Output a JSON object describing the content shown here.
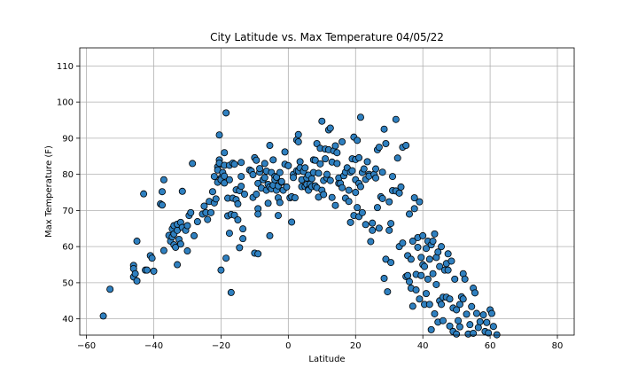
{
  "chart_data": {
    "type": "scatter",
    "title": "City Latitude vs. Max Temperature 04/05/22",
    "xlabel": "Latitude",
    "ylabel": "Max Temperature (F)",
    "xlim": [
      -62,
      85
    ],
    "ylim": [
      35.5,
      115
    ],
    "xticks": [
      -60,
      -40,
      -20,
      0,
      20,
      40,
      60,
      80
    ],
    "yticks": [
      40,
      50,
      60,
      70,
      80,
      90,
      100,
      110
    ],
    "grid": true,
    "point_color": "#2f80c0",
    "points": [
      [
        -55,
        40.8
      ],
      [
        -53,
        48.2
      ],
      [
        -46,
        54.8
      ],
      [
        -46,
        53.9
      ],
      [
        -46,
        51.6
      ],
      [
        -45.5,
        52.5
      ],
      [
        -45,
        50.5
      ],
      [
        -45,
        61.5
      ],
      [
        -43,
        74.6
      ],
      [
        -42.5,
        53.5
      ],
      [
        -42,
        53.5
      ],
      [
        -41,
        57.5
      ],
      [
        -40.5,
        56.8
      ],
      [
        -40,
        53.2
      ],
      [
        -38,
        71.8
      ],
      [
        -37.5,
        71.5
      ],
      [
        -37.5,
        75.2
      ],
      [
        -37,
        78.5
      ],
      [
        -37,
        58.9
      ],
      [
        -35.5,
        63.1
      ],
      [
        -35,
        61.5
      ],
      [
        -34.5,
        62.7
      ],
      [
        -34.5,
        64.9
      ],
      [
        -34,
        60.5
      ],
      [
        -34,
        65.8
      ],
      [
        -34,
        63.5
      ],
      [
        -33.5,
        59.8
      ],
      [
        -33,
        64.5
      ],
      [
        -33,
        66.2
      ],
      [
        -33,
        55
      ],
      [
        -32.5,
        62
      ],
      [
        -32,
        66.7
      ],
      [
        -32,
        60.7
      ],
      [
        -31.5,
        65.3
      ],
      [
        -31.5,
        75.3
      ],
      [
        -30.5,
        64.5
      ],
      [
        -30,
        65.8
      ],
      [
        -30,
        58.8
      ],
      [
        -29.5,
        68.6
      ],
      [
        -29,
        69.4
      ],
      [
        -28.5,
        83
      ],
      [
        -28,
        63
      ],
      [
        -27,
        66.9
      ],
      [
        -25.5,
        69
      ],
      [
        -25,
        71.2
      ],
      [
        -24.5,
        69.4
      ],
      [
        -24,
        67.5
      ],
      [
        -23.5,
        72.5
      ],
      [
        -23,
        69.4
      ],
      [
        -22.5,
        75.2
      ],
      [
        -22,
        79.4
      ],
      [
        -22,
        72.1
      ],
      [
        -21.5,
        73.2
      ],
      [
        -21,
        77.8
      ],
      [
        -21,
        82.1
      ],
      [
        -21,
        81.2
      ],
      [
        -20.5,
        84
      ],
      [
        -20.5,
        90.9
      ],
      [
        -20.5,
        83.1
      ],
      [
        -20,
        79
      ],
      [
        -20,
        78.5
      ],
      [
        -20,
        53.5
      ],
      [
        -19.5,
        80.5
      ],
      [
        -19,
        82.5
      ],
      [
        -19,
        86
      ],
      [
        -19,
        77.6
      ],
      [
        -19,
        79.5
      ],
      [
        -18.5,
        97
      ],
      [
        -18.5,
        56.8
      ],
      [
        -18,
        68.5
      ],
      [
        -18,
        73.4
      ],
      [
        -17.5,
        63.7
      ],
      [
        -17.5,
        78.5
      ],
      [
        -17.5,
        82.5
      ],
      [
        -17,
        47.3
      ],
      [
        -17,
        68.9
      ],
      [
        -16.5,
        83.1
      ],
      [
        -16.5,
        73.4
      ],
      [
        -16,
        82.8
      ],
      [
        -16,
        68.7
      ],
      [
        -15.5,
        75.7
      ],
      [
        -15.5,
        73
      ],
      [
        -15,
        71.8
      ],
      [
        -15,
        67.4
      ],
      [
        -14.5,
        59.7
      ],
      [
        -14.5,
        75.5
      ],
      [
        -14,
        83.3
      ],
      [
        -14,
        76.7
      ],
      [
        -14,
        79.4
      ],
      [
        -13.5,
        62.2
      ],
      [
        -13.5,
        64.9
      ],
      [
        -13,
        74.5
      ],
      [
        -11.5,
        81.2
      ],
      [
        -11,
        80.9
      ],
      [
        -10.5,
        79.9
      ],
      [
        -10.5,
        73.6
      ],
      [
        -10,
        84.6
      ],
      [
        -10,
        58.2
      ],
      [
        -9.5,
        83.9
      ],
      [
        -9.5,
        74.5
      ],
      [
        -9,
        77.5
      ],
      [
        -9,
        70.5
      ],
      [
        -9,
        69
      ],
      [
        -9,
        58
      ],
      [
        -8.5,
        80.6
      ],
      [
        -8.5,
        81.6
      ],
      [
        -8,
        76.2
      ],
      [
        -7.5,
        78.5
      ],
      [
        -7,
        79.1
      ],
      [
        -7,
        83
      ],
      [
        -6.5,
        80.9
      ],
      [
        -6.5,
        75.6
      ],
      [
        -6,
        72
      ],
      [
        -6,
        77.2
      ],
      [
        -5.5,
        88
      ],
      [
        -5.5,
        76.5
      ],
      [
        -5.5,
        63
      ],
      [
        -5,
        80.5
      ],
      [
        -5,
        76
      ],
      [
        -4.5,
        84
      ],
      [
        -4.5,
        77
      ],
      [
        -4,
        79.4
      ],
      [
        -4,
        78.5
      ],
      [
        -3.5,
        75.6
      ],
      [
        -3.5,
        79.2
      ],
      [
        -3,
        73.5
      ],
      [
        -3,
        76.8
      ],
      [
        -3,
        68.6
      ],
      [
        -2.5,
        72.2
      ],
      [
        -2.5,
        80.5
      ],
      [
        -2,
        77.8
      ],
      [
        -2,
        78
      ],
      [
        -1.5,
        75.6
      ],
      [
        -1,
        86.2
      ],
      [
        -1,
        82.8
      ],
      [
        -0.5,
        76.5
      ],
      [
        0,
        82.4
      ],
      [
        0.5,
        73.5
      ],
      [
        1,
        73.8
      ],
      [
        1,
        66.8
      ],
      [
        1.5,
        80
      ],
      [
        1.5,
        79.1
      ],
      [
        2,
        73.5
      ],
      [
        2.5,
        89.5
      ],
      [
        2.5,
        81
      ],
      [
        3,
        80.9
      ],
      [
        3,
        91
      ],
      [
        3,
        89
      ],
      [
        3.5,
        83.5
      ],
      [
        3.5,
        81.8
      ],
      [
        4,
        76.6
      ],
      [
        4,
        78.5
      ],
      [
        4.5,
        80.8
      ],
      [
        5,
        76.6
      ],
      [
        5,
        81.8
      ],
      [
        5.5,
        79
      ],
      [
        5.5,
        77.2
      ],
      [
        6,
        75.9
      ],
      [
        6,
        79.8
      ],
      [
        6,
        75.6
      ],
      [
        6.5,
        77.3
      ],
      [
        7,
        76.6
      ],
      [
        7,
        78.8
      ],
      [
        7.5,
        80.5
      ],
      [
        7.5,
        84
      ],
      [
        8,
        83.9
      ],
      [
        8,
        76.8
      ],
      [
        8.5,
        76.3
      ],
      [
        8.5,
        88.5
      ],
      [
        9,
        73.7
      ],
      [
        9,
        80.3
      ],
      [
        9.5,
        87.2
      ],
      [
        9.5,
        82.9
      ],
      [
        10,
        94.7
      ],
      [
        10,
        75.6
      ],
      [
        10.5,
        74.4
      ],
      [
        10.5,
        78.3
      ],
      [
        11,
        84.3
      ],
      [
        11,
        87
      ],
      [
        11.5,
        79
      ],
      [
        11.5,
        80
      ],
      [
        12,
        92.3
      ],
      [
        12,
        86.8
      ],
      [
        12.5,
        92.8
      ],
      [
        12.5,
        78.3
      ],
      [
        13,
        83.4
      ],
      [
        13,
        73.6
      ],
      [
        13.5,
        86.5
      ],
      [
        14,
        87.9
      ],
      [
        14,
        71.4
      ],
      [
        14.5,
        83
      ],
      [
        14.5,
        86
      ],
      [
        15,
        79
      ],
      [
        15,
        77.5
      ],
      [
        15.5,
        77.5
      ],
      [
        16,
        76.3
      ],
      [
        16,
        89
      ],
      [
        16.5,
        79.6
      ],
      [
        17,
        80.6
      ],
      [
        17,
        73.4
      ],
      [
        17.5,
        81.8
      ],
      [
        18,
        75.6
      ],
      [
        18,
        72.5
      ],
      [
        18.5,
        66.7
      ],
      [
        18.5,
        80.6
      ],
      [
        19,
        84.3
      ],
      [
        19,
        81
      ],
      [
        19.5,
        90.3
      ],
      [
        19.5,
        68.6
      ],
      [
        20,
        78.5
      ],
      [
        20,
        84.1
      ],
      [
        20,
        75
      ],
      [
        20.5,
        89.4
      ],
      [
        20.5,
        70.8
      ],
      [
        21,
        68.3
      ],
      [
        21,
        77.5
      ],
      [
        21,
        84.6
      ],
      [
        21.5,
        95.8
      ],
      [
        21.5,
        76.6
      ],
      [
        22,
        69.4
      ],
      [
        22,
        80.5
      ],
      [
        22.5,
        81.5
      ],
      [
        23,
        78.6
      ],
      [
        23,
        66.1
      ],
      [
        23.5,
        83.5
      ],
      [
        24,
        80
      ],
      [
        24,
        79.5
      ],
      [
        24.5,
        61.4
      ],
      [
        25,
        64.5
      ],
      [
        25,
        66.5
      ],
      [
        25.5,
        80
      ],
      [
        26,
        81.5
      ],
      [
        26,
        79
      ],
      [
        26.5,
        70.8
      ],
      [
        26.5,
        86.8
      ],
      [
        27,
        87.5
      ],
      [
        27,
        65.1
      ],
      [
        27.5,
        73.8
      ],
      [
        28,
        73.3
      ],
      [
        28,
        80.6
      ],
      [
        28.5,
        92.5
      ],
      [
        28.5,
        51.2
      ],
      [
        29,
        56.5
      ],
      [
        29,
        88.5
      ],
      [
        29.5,
        47.5
      ],
      [
        30,
        64.5
      ],
      [
        30,
        72.4
      ],
      [
        30.5,
        55.6
      ],
      [
        30.5,
        66.4
      ],
      [
        31,
        75.5
      ],
      [
        31,
        79.4
      ],
      [
        32,
        75.4
      ],
      [
        32,
        95.2
      ],
      [
        32.5,
        84.5
      ],
      [
        33,
        74.8
      ],
      [
        33,
        60
      ],
      [
        33.5,
        76.5
      ],
      [
        34,
        61
      ],
      [
        34,
        87.5
      ],
      [
        35,
        88
      ],
      [
        35,
        51.7
      ],
      [
        35.5,
        57.5
      ],
      [
        35.5,
        52
      ],
      [
        36,
        50.3
      ],
      [
        36,
        69
      ],
      [
        36.5,
        48.5
      ],
      [
        36.5,
        56.5
      ],
      [
        37,
        43.5
      ],
      [
        37,
        61.5
      ],
      [
        37.5,
        73.5
      ],
      [
        37.5,
        70.5
      ],
      [
        38,
        52.3
      ],
      [
        38,
        48
      ],
      [
        38.5,
        59.8
      ],
      [
        38.5,
        62.5
      ],
      [
        39,
        72.4
      ],
      [
        39,
        45.5
      ],
      [
        39.5,
        57
      ],
      [
        39.5,
        52
      ],
      [
        40,
        55
      ],
      [
        40,
        63
      ],
      [
        40.5,
        54.5
      ],
      [
        40.5,
        44
      ],
      [
        41,
        59.5
      ],
      [
        41,
        47
      ],
      [
        41.5,
        61.5
      ],
      [
        41.5,
        51
      ],
      [
        42,
        56.5
      ],
      [
        42,
        44
      ],
      [
        42.5,
        60.5
      ],
      [
        42.5,
        37
      ],
      [
        43,
        61.5
      ],
      [
        43,
        52.5
      ],
      [
        43.5,
        63.5
      ],
      [
        43.5,
        41.4
      ],
      [
        44,
        57
      ],
      [
        44,
        49.5
      ],
      [
        44.5,
        58.5
      ],
      [
        44.5,
        39.1
      ],
      [
        45,
        45
      ],
      [
        45,
        54.5
      ],
      [
        45.5,
        60
      ],
      [
        45.5,
        44
      ],
      [
        46,
        46
      ],
      [
        46,
        39.5
      ],
      [
        46.5,
        53.5
      ],
      [
        47,
        55.3
      ],
      [
        47,
        46
      ],
      [
        47.5,
        53.5
      ],
      [
        47.5,
        58
      ],
      [
        48,
        45.5
      ],
      [
        48,
        38
      ],
      [
        48.5,
        56
      ],
      [
        49,
        43
      ],
      [
        49,
        36.5
      ],
      [
        49.5,
        51
      ],
      [
        50,
        42.5
      ],
      [
        50,
        35.8
      ],
      [
        50.5,
        39.5
      ],
      [
        51,
        44
      ],
      [
        51,
        37.8
      ],
      [
        51.5,
        46.1
      ],
      [
        52,
        52.5
      ],
      [
        52,
        45.5
      ],
      [
        52.5,
        51
      ],
      [
        53,
        41.3
      ],
      [
        53.5,
        35.8
      ],
      [
        54,
        38.4
      ],
      [
        54.5,
        43.4
      ],
      [
        55,
        48.5
      ],
      [
        55,
        36
      ],
      [
        55.5,
        47.2
      ],
      [
        56,
        41.5
      ],
      [
        56.5,
        37.6
      ],
      [
        57,
        39.2
      ],
      [
        58,
        41.1
      ],
      [
        58.5,
        36.5
      ],
      [
        59,
        39
      ],
      [
        59.5,
        36.1
      ],
      [
        60,
        42.5
      ],
      [
        60.5,
        41.5
      ],
      [
        61,
        37.9
      ],
      [
        62,
        35.6
      ]
    ]
  }
}
